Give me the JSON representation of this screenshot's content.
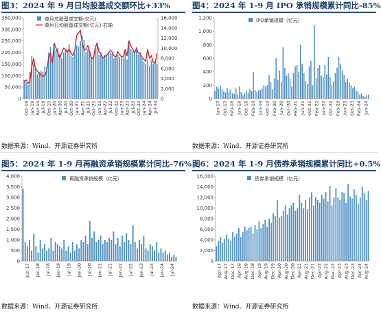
{
  "panels": [
    {
      "title": "图3：2024 年 9 月日均股基成交额环比+33%",
      "source": "数据来源：Wind、开源证券研究所"
    },
    {
      "title": "图4：2024 年 1-9 月 IPO 承销规模累计同比-85%",
      "source": "数据来源：Wind、开源证券研究所"
    },
    {
      "title": "图5：2024 年 1-9 月再融资承销规模累计同比-76%",
      "source": "数据来源：Wind、开源证券研究所"
    },
    {
      "title": "图6：2024 年 1-9 月债券承销规模累计同比+0.5%",
      "source": "数据来源：Wind、开源证券研究所"
    }
  ],
  "colors": {
    "bar": "#4f8fc0",
    "line": "#c8252c",
    "title": "#1e3f66",
    "rule": "#1e4d80"
  },
  "chart_data": [
    {
      "type": "bar",
      "title": "",
      "x_ticks": [
        "Oct-18",
        "Jan-19",
        "Apr-19",
        "Jul-19",
        "Oct-19",
        "Jan-20",
        "Apr-20",
        "Jul-20",
        "Oct-20",
        "Jan-21",
        "Apr-21",
        "Jul-21",
        "Oct-21",
        "Jan-22",
        "Apr-22",
        "Jul-22",
        "Oct-22",
        "Jan-23",
        "Apr-23",
        "Jul-23",
        "Oct-23",
        "Jan-24",
        "Apr-24",
        "Jul-24"
      ],
      "y_ticks": [
        "0",
        "50,000",
        "100,000",
        "150,000",
        "200,000",
        "250,000",
        "300,000",
        "350,000"
      ],
      "y2_ticks": [
        "0",
        "2,000",
        "4,000",
        "6,000",
        "8,000",
        "10,000",
        "12,000",
        "14,000",
        "16,000"
      ],
      "ylim": [
        0,
        350000
      ],
      "y2lim": [
        0,
        16000
      ],
      "series": [
        {
          "name": "单月总股基成交额(亿元)",
          "type": "bar",
          "values": [
            80000,
            70000,
            60000,
            115000,
            185000,
            150000,
            130000,
            105000,
            115000,
            120000,
            115000,
            140000,
            135000,
            200000,
            225000,
            160000,
            240000,
            210000,
            220000,
            195000,
            175000,
            200000,
            215000,
            210000,
            235000,
            185000,
            180000,
            200000,
            230000,
            225000,
            250000,
            270000,
            255000,
            200000,
            215000,
            205000,
            180000,
            175000,
            220000,
            240000,
            190000,
            200000,
            180000,
            190000,
            185000,
            195000,
            200000,
            195000,
            175000,
            175000,
            190000,
            180000,
            180000,
            175000,
            200000,
            170000,
            240000,
            215000,
            205000,
            195000,
            210000,
            190000,
            200000,
            175000,
            160000,
            150000,
            170000,
            140000,
            165000,
            150000,
            160000,
            150000
          ]
        },
        {
          "name": "单月日均股基成交额(亿元)-右轴",
          "type": "line",
          "values": [
            3400,
            3700,
            3000,
            3400,
            6300,
            8000,
            5900,
            5500,
            5000,
            4700,
            4400,
            4600,
            5400,
            8000,
            9000,
            7000,
            11000,
            10000,
            9000,
            8000,
            9000,
            10000,
            9800,
            9200,
            9800,
            9000,
            8500,
            9500,
            12500,
            13000,
            13500,
            11000,
            9600,
            9800,
            10500,
            9300,
            8000,
            8000,
            10200,
            11000,
            9200,
            9000,
            8000,
            8300,
            8600,
            9000,
            9500,
            9300,
            8500,
            8200,
            9300,
            8700,
            8300,
            8300,
            9800,
            8400,
            11500,
            10500,
            9800,
            9000,
            10000,
            9000,
            9000,
            8200,
            7800,
            7400,
            9800,
            8000,
            8500,
            7200,
            7000,
            9000
          ]
        }
      ]
    },
    {
      "type": "bar",
      "title": "",
      "x_ticks": [
        "Jun-17",
        "Oct-17",
        "Feb-18",
        "Jun-18",
        "Oct-18",
        "Feb-19",
        "Jun-19",
        "Oct-19",
        "Feb-20",
        "Jun-20",
        "Oct-20",
        "Feb-21",
        "Jun-21",
        "Oct-21",
        "Feb-22",
        "Jun-22",
        "Oct-22",
        "Feb-23",
        "Jun-23",
        "Oct-23",
        "Feb-24",
        "Jun-24"
      ],
      "y_ticks": [
        "0",
        "200",
        "400",
        "600",
        "800",
        "1,000",
        "1,200"
      ],
      "ylim": [
        0,
        1200
      ],
      "series": [
        {
          "name": "IPO承销规模（亿元）",
          "values": [
            120,
            180,
            150,
            200,
            140,
            110,
            90,
            160,
            110,
            140,
            80,
            70,
            150,
            60,
            180,
            100,
            50,
            80,
            120,
            90,
            140,
            110,
            400,
            130,
            100,
            120,
            130,
            150,
            200,
            180,
            200,
            350,
            250,
            140,
            300,
            600,
            280,
            420,
            250,
            760,
            460,
            340,
            380,
            300,
            180,
            380,
            480,
            500,
            400,
            800,
            520,
            380,
            260,
            220,
            480,
            560,
            200,
            1090,
            300,
            460,
            500,
            340,
            320,
            500,
            360,
            620,
            320,
            200,
            250,
            380,
            460,
            620,
            520,
            420,
            350,
            250,
            300,
            240,
            200,
            160,
            180,
            120,
            100,
            60,
            80,
            40,
            30,
            50,
            60
          ]
        }
      ]
    },
    {
      "type": "bar",
      "title": "",
      "x_ticks": [
        "Jun-17",
        "Jan-18",
        "Jul-18",
        "Jan-19",
        "Jul-19",
        "Jan-20",
        "Jul-20",
        "Jan-21",
        "Jul-21",
        "Jan-22",
        "Jul-22",
        "Jan-23",
        "Jul-23",
        "Jan-24",
        "Jul-24"
      ],
      "y_ticks": [
        "0",
        "500",
        "1,000",
        "1,500",
        "2,000",
        "2,500",
        "3,000",
        "3,500",
        "4,000"
      ],
      "ylim": [
        0,
        4000
      ],
      "series": [
        {
          "name": "再融资承销规模（亿元）",
          "values": [
            3400,
            900,
            700,
            1000,
            500,
            1300,
            700,
            400,
            1000,
            600,
            800,
            500,
            600,
            1100,
            500,
            900,
            800,
            700,
            600,
            1000,
            500,
            700,
            400,
            900,
            500,
            800,
            600,
            1000,
            900,
            1200,
            800,
            1900,
            1100,
            1400,
            900,
            1000,
            1200,
            800,
            1000,
            900,
            1100,
            1000,
            1400,
            800,
            1100,
            700,
            1200,
            900,
            1300,
            1000,
            800,
            1700,
            900,
            600,
            1000,
            800,
            1200,
            600,
            500,
            800,
            700,
            500,
            900,
            400,
            600,
            400,
            500,
            300,
            400,
            200,
            300,
            200
          ]
        }
      ]
    },
    {
      "type": "bar",
      "title": "",
      "x_ticks": [
        "Apr-17",
        "Aug-17",
        "Dec-17",
        "Apr-18",
        "Aug-18",
        "Dec-18",
        "Apr-19",
        "Aug-19",
        "Dec-19",
        "Apr-20",
        "Aug-20",
        "Dec-20",
        "Apr-21",
        "Aug-21",
        "Dec-21",
        "Apr-22",
        "Aug-22",
        "Dec-22",
        "Apr-23",
        "Aug-23",
        "Dec-23",
        "Apr-24",
        "Aug-24"
      ],
      "y_ticks": [
        "0",
        "2,000",
        "4,000",
        "6,000",
        "8,000",
        "10,000",
        "12,000",
        "14,000",
        "16,000"
      ],
      "ylim": [
        0,
        16000
      ],
      "series": [
        {
          "name": "债券承销规模（亿元）",
          "values": [
            2800,
            3800,
            4500,
            3500,
            4200,
            5000,
            4200,
            3800,
            5500,
            4600,
            5200,
            6200,
            4500,
            5500,
            6500,
            5800,
            6200,
            6500,
            5200,
            6800,
            6000,
            7500,
            6200,
            7000,
            7800,
            6500,
            8000,
            7200,
            9000,
            8500,
            11500,
            8200,
            8500,
            9500,
            10500,
            8800,
            10000,
            10500,
            11000,
            9500,
            10000,
            12500,
            11000,
            10000,
            11500,
            9800,
            12000,
            13000,
            10500,
            12000,
            11500,
            11000,
            12500,
            11800,
            13000,
            11200,
            14200,
            10500,
            12000,
            13800,
            12000,
            11500,
            13000,
            12800,
            11000,
            14500,
            12200,
            11800,
            13500,
            12500,
            10800,
            12000,
            14000,
            12800,
            11500,
            13200
          ]
        }
      ]
    }
  ]
}
